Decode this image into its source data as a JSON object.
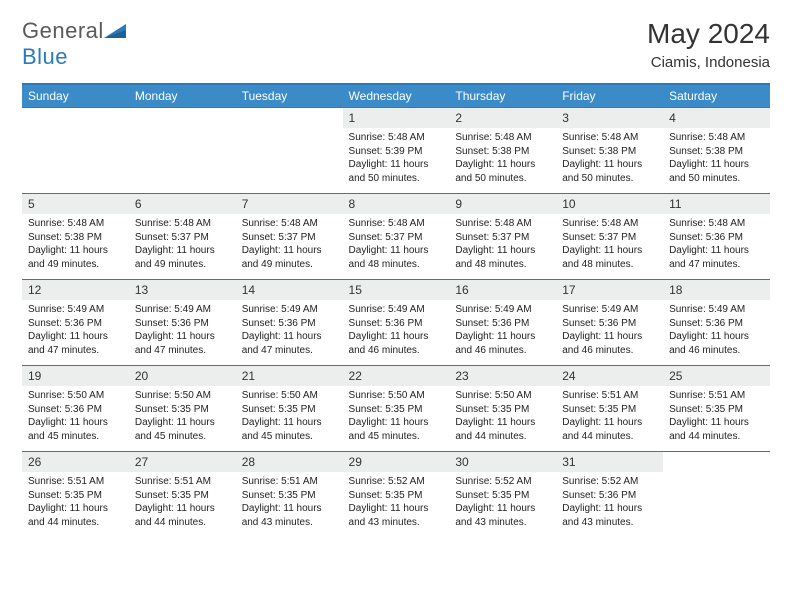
{
  "logo": {
    "general": "General",
    "blue": "Blue"
  },
  "title": "May 2024",
  "location": "Ciamis, Indonesia",
  "colors": {
    "header_bg": "#3b8bc9",
    "header_text": "#ffffff",
    "border": "#2a7bbd",
    "daynum_bg": "#eceded",
    "page_bg": "#ffffff",
    "text": "#333333",
    "logo_gray": "#5a5a5a",
    "logo_blue": "#2a7bbd"
  },
  "weekdays": [
    "Sunday",
    "Monday",
    "Tuesday",
    "Wednesday",
    "Thursday",
    "Friday",
    "Saturday"
  ],
  "weeks": [
    [
      {
        "empty": true
      },
      {
        "empty": true
      },
      {
        "empty": true
      },
      {
        "num": "1",
        "sunrise": "5:48 AM",
        "sunset": "5:39 PM",
        "daylight": "11 hours and 50 minutes."
      },
      {
        "num": "2",
        "sunrise": "5:48 AM",
        "sunset": "5:38 PM",
        "daylight": "11 hours and 50 minutes."
      },
      {
        "num": "3",
        "sunrise": "5:48 AM",
        "sunset": "5:38 PM",
        "daylight": "11 hours and 50 minutes."
      },
      {
        "num": "4",
        "sunrise": "5:48 AM",
        "sunset": "5:38 PM",
        "daylight": "11 hours and 50 minutes."
      }
    ],
    [
      {
        "num": "5",
        "sunrise": "5:48 AM",
        "sunset": "5:38 PM",
        "daylight": "11 hours and 49 minutes."
      },
      {
        "num": "6",
        "sunrise": "5:48 AM",
        "sunset": "5:37 PM",
        "daylight": "11 hours and 49 minutes."
      },
      {
        "num": "7",
        "sunrise": "5:48 AM",
        "sunset": "5:37 PM",
        "daylight": "11 hours and 49 minutes."
      },
      {
        "num": "8",
        "sunrise": "5:48 AM",
        "sunset": "5:37 PM",
        "daylight": "11 hours and 48 minutes."
      },
      {
        "num": "9",
        "sunrise": "5:48 AM",
        "sunset": "5:37 PM",
        "daylight": "11 hours and 48 minutes."
      },
      {
        "num": "10",
        "sunrise": "5:48 AM",
        "sunset": "5:37 PM",
        "daylight": "11 hours and 48 minutes."
      },
      {
        "num": "11",
        "sunrise": "5:48 AM",
        "sunset": "5:36 PM",
        "daylight": "11 hours and 47 minutes."
      }
    ],
    [
      {
        "num": "12",
        "sunrise": "5:49 AM",
        "sunset": "5:36 PM",
        "daylight": "11 hours and 47 minutes."
      },
      {
        "num": "13",
        "sunrise": "5:49 AM",
        "sunset": "5:36 PM",
        "daylight": "11 hours and 47 minutes."
      },
      {
        "num": "14",
        "sunrise": "5:49 AM",
        "sunset": "5:36 PM",
        "daylight": "11 hours and 47 minutes."
      },
      {
        "num": "15",
        "sunrise": "5:49 AM",
        "sunset": "5:36 PM",
        "daylight": "11 hours and 46 minutes."
      },
      {
        "num": "16",
        "sunrise": "5:49 AM",
        "sunset": "5:36 PM",
        "daylight": "11 hours and 46 minutes."
      },
      {
        "num": "17",
        "sunrise": "5:49 AM",
        "sunset": "5:36 PM",
        "daylight": "11 hours and 46 minutes."
      },
      {
        "num": "18",
        "sunrise": "5:49 AM",
        "sunset": "5:36 PM",
        "daylight": "11 hours and 46 minutes."
      }
    ],
    [
      {
        "num": "19",
        "sunrise": "5:50 AM",
        "sunset": "5:36 PM",
        "daylight": "11 hours and 45 minutes."
      },
      {
        "num": "20",
        "sunrise": "5:50 AM",
        "sunset": "5:35 PM",
        "daylight": "11 hours and 45 minutes."
      },
      {
        "num": "21",
        "sunrise": "5:50 AM",
        "sunset": "5:35 PM",
        "daylight": "11 hours and 45 minutes."
      },
      {
        "num": "22",
        "sunrise": "5:50 AM",
        "sunset": "5:35 PM",
        "daylight": "11 hours and 45 minutes."
      },
      {
        "num": "23",
        "sunrise": "5:50 AM",
        "sunset": "5:35 PM",
        "daylight": "11 hours and 44 minutes."
      },
      {
        "num": "24",
        "sunrise": "5:51 AM",
        "sunset": "5:35 PM",
        "daylight": "11 hours and 44 minutes."
      },
      {
        "num": "25",
        "sunrise": "5:51 AM",
        "sunset": "5:35 PM",
        "daylight": "11 hours and 44 minutes."
      }
    ],
    [
      {
        "num": "26",
        "sunrise": "5:51 AM",
        "sunset": "5:35 PM",
        "daylight": "11 hours and 44 minutes."
      },
      {
        "num": "27",
        "sunrise": "5:51 AM",
        "sunset": "5:35 PM",
        "daylight": "11 hours and 44 minutes."
      },
      {
        "num": "28",
        "sunrise": "5:51 AM",
        "sunset": "5:35 PM",
        "daylight": "11 hours and 43 minutes."
      },
      {
        "num": "29",
        "sunrise": "5:52 AM",
        "sunset": "5:35 PM",
        "daylight": "11 hours and 43 minutes."
      },
      {
        "num": "30",
        "sunrise": "5:52 AM",
        "sunset": "5:35 PM",
        "daylight": "11 hours and 43 minutes."
      },
      {
        "num": "31",
        "sunrise": "5:52 AM",
        "sunset": "5:36 PM",
        "daylight": "11 hours and 43 minutes."
      },
      {
        "empty": true
      }
    ]
  ],
  "labels": {
    "sunrise": "Sunrise:",
    "sunset": "Sunset:",
    "daylight": "Daylight:"
  }
}
